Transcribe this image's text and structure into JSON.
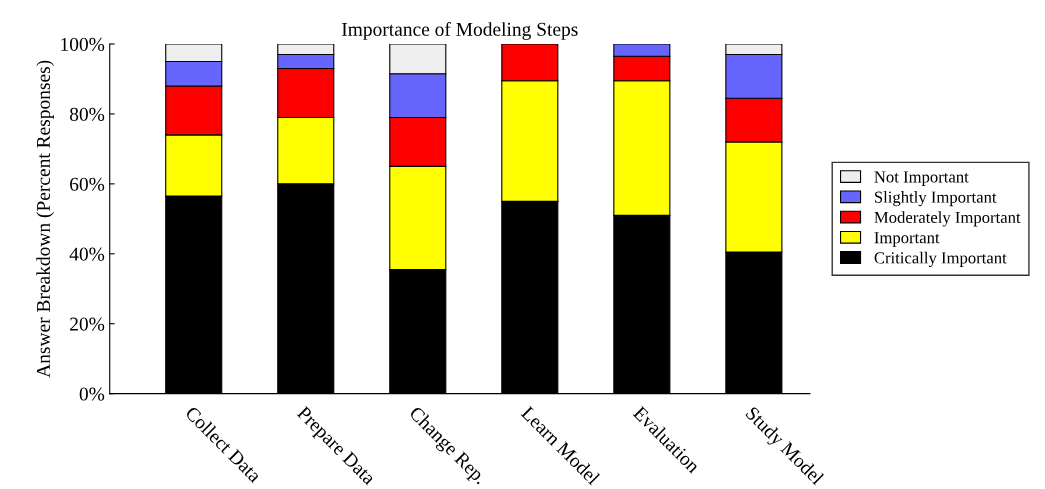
{
  "chart_data": {
    "type": "bar",
    "title": "Importance of Modeling Steps",
    "ylabel": "Answer Breakdown (Percent Responses)",
    "stacked": true,
    "categories": [
      "Collect Data",
      "Prepare Data",
      "Change Rep.",
      "Learn Model",
      "Evaluation",
      "Study Model"
    ],
    "series": [
      {
        "name": "Critically Important",
        "color": "#000000",
        "values": [
          56.5,
          60,
          35.5,
          55,
          51,
          40.5
        ]
      },
      {
        "name": "Important",
        "color": "#ffff00",
        "values": [
          17.5,
          19,
          29.5,
          34.5,
          38.5,
          31.5
        ]
      },
      {
        "name": "Moderately Important",
        "color": "#ff0000",
        "values": [
          14,
          14,
          14,
          10.5,
          7,
          12.5
        ]
      },
      {
        "name": "Slightly Important",
        "color": "#6666ff",
        "values": [
          7,
          4,
          12.5,
          null,
          3.5,
          12.5
        ]
      },
      {
        "name": "Not Important",
        "color": "#eeeeee",
        "values": [
          5,
          3,
          8.5,
          null,
          null,
          3
        ]
      }
    ],
    "ylim": [
      0,
      100
    ],
    "yticks": [
      {
        "value": 0,
        "label": "0%"
      },
      {
        "value": 20,
        "label": "20%"
      },
      {
        "value": 40,
        "label": "40%"
      },
      {
        "value": 60,
        "label": "60%"
      },
      {
        "value": 80,
        "label": "80%"
      },
      {
        "value": 100,
        "label": "100%"
      }
    ],
    "grid": false,
    "legend": "right"
  }
}
